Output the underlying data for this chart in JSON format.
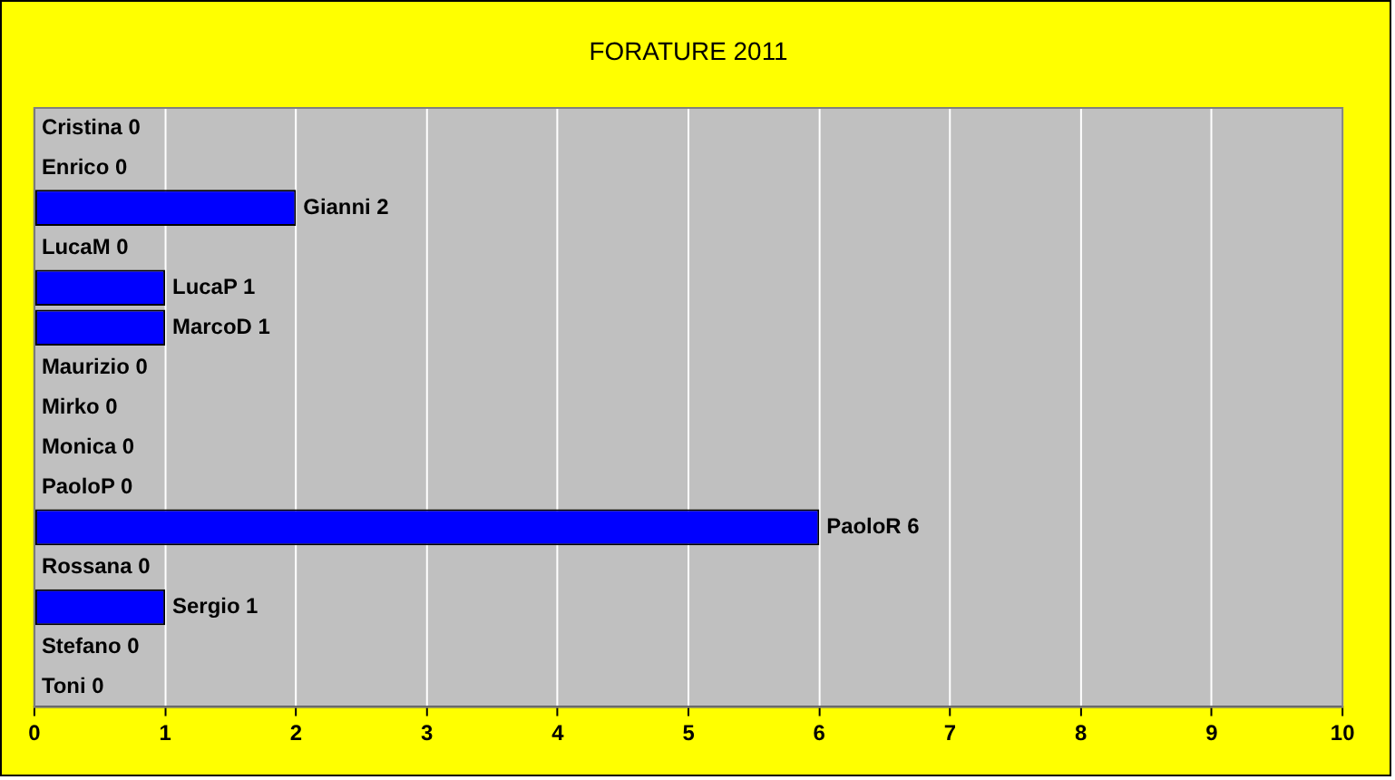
{
  "chart_data": {
    "type": "bar",
    "title": "FORATURE 2011",
    "orientation": "horizontal",
    "categories": [
      "Cristina",
      "Enrico",
      "Gianni",
      "LucaM",
      "LucaP",
      "MarcoD",
      "Maurizio",
      "Mirko",
      "Monica",
      "PaoloP",
      "PaoloR",
      "Rossana",
      "Sergio",
      "Stefano",
      "Toni"
    ],
    "values": [
      0,
      0,
      2,
      0,
      1,
      1,
      0,
      0,
      0,
      0,
      6,
      0,
      1,
      0,
      0
    ],
    "value_labels": [
      "0",
      "0",
      "2",
      "0",
      "1",
      "1",
      "0",
      "0",
      "0",
      "0",
      "6",
      "0",
      "1",
      "0",
      "0"
    ],
    "color": "#0000ff",
    "xlim": [
      0,
      10
    ],
    "xticks": [
      0,
      1,
      2,
      3,
      4,
      5,
      6,
      7,
      8,
      9,
      10
    ],
    "grid": "x",
    "legend": false,
    "tick_labels": "x"
  }
}
